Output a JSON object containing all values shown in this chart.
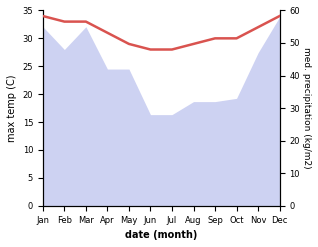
{
  "months": [
    "Jan",
    "Feb",
    "Mar",
    "Apr",
    "May",
    "Jun",
    "Jul",
    "Aug",
    "Sep",
    "Oct",
    "Nov",
    "Dec"
  ],
  "temperature": [
    34,
    33,
    33,
    31,
    29,
    28,
    28,
    29,
    30,
    30,
    32,
    34
  ],
  "precipitation": [
    55,
    48,
    55,
    42,
    42,
    28,
    28,
    32,
    32,
    33,
    47,
    58
  ],
  "temp_color": "#d9534f",
  "precip_color": "#c5caf0",
  "ylabel_left": "max temp (C)",
  "ylabel_right": "med. precipitation (kg/m2)",
  "xlabel": "date (month)",
  "ylim_left": [
    0,
    35
  ],
  "ylim_right": [
    0,
    60
  ],
  "yticks_left": [
    0,
    5,
    10,
    15,
    20,
    25,
    30,
    35
  ],
  "yticks_right": [
    0,
    10,
    20,
    30,
    40,
    50,
    60
  ],
  "background_color": "#ffffff",
  "temp_linewidth": 1.8
}
